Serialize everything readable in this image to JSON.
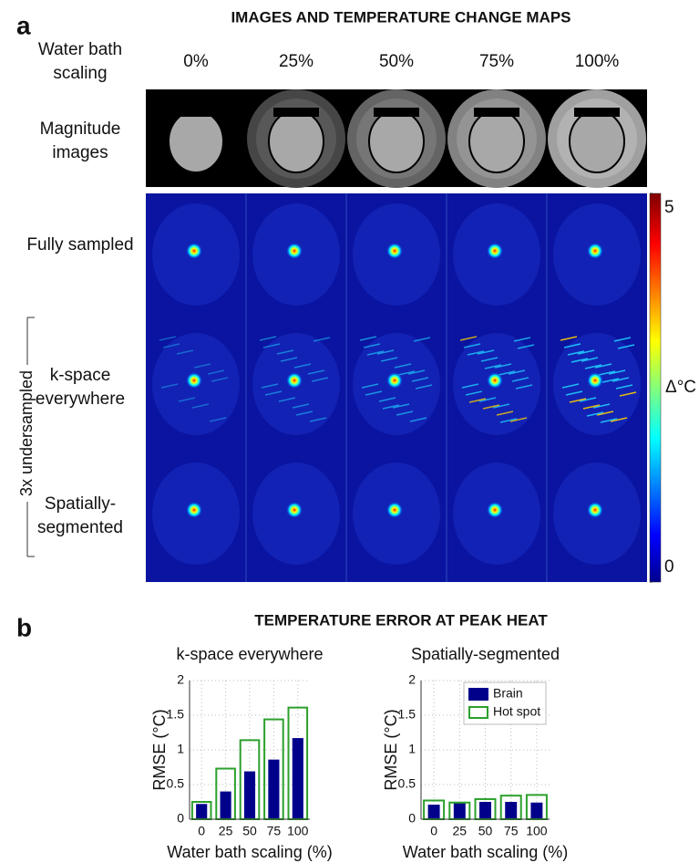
{
  "figure_a": {
    "label": "a",
    "title": "IMAGES AND TEMPERATURE CHANGE MAPS",
    "column_header": "Water bath scaling",
    "columns": [
      "0%",
      "25%",
      "50%",
      "75%",
      "100%"
    ],
    "rows": [
      "Magnitude images",
      "Fully sampled",
      "k-space everywhere",
      "Spatially-segmented"
    ],
    "bracket": "3x undersampled",
    "colorbar": {
      "label": "Δ°C",
      "lim": [
        0,
        5
      ],
      "ticks": [
        0,
        5
      ]
    }
  },
  "figure_b": {
    "label": "b",
    "title": "TEMPERATURE ERROR AT PEAK HEAT"
  },
  "chart_data": [
    {
      "type": "bar",
      "title": "k-space everywhere",
      "xlabel": "Water bath scaling (%)",
      "ylabel": "RMSE (°C)",
      "categories": [
        "0",
        "25",
        "50",
        "75",
        "100"
      ],
      "series": [
        {
          "color": "#00008b",
          "filled": true,
          "values": [
            0.22,
            0.4,
            0.69,
            0.86,
            1.17
          ]
        },
        {
          "color": "#2ca02c",
          "filled": false,
          "values": [
            0.25,
            0.73,
            1.14,
            1.44,
            1.61
          ]
        }
      ],
      "ylim": [
        0,
        2
      ],
      "yticks": [
        0,
        0.5,
        1,
        1.5,
        2
      ],
      "grid": true
    },
    {
      "type": "bar",
      "title": "Spatially-segmented",
      "xlabel": "Water bath scaling (%)",
      "ylabel": "RMSE (°C)",
      "categories": [
        "0",
        "25",
        "50",
        "75",
        "100"
      ],
      "series": [
        {
          "name": "Brain",
          "color": "#00008b",
          "filled": true,
          "values": [
            0.21,
            0.23,
            0.25,
            0.25,
            0.24
          ]
        },
        {
          "name": "Hot spot",
          "color": "#2ca02c",
          "filled": false,
          "values": [
            0.27,
            0.24,
            0.29,
            0.34,
            0.35
          ]
        }
      ],
      "ylim": [
        0,
        2
      ],
      "yticks": [
        0,
        0.5,
        1,
        1.5,
        2
      ],
      "grid": true,
      "legend": "upper right"
    }
  ]
}
